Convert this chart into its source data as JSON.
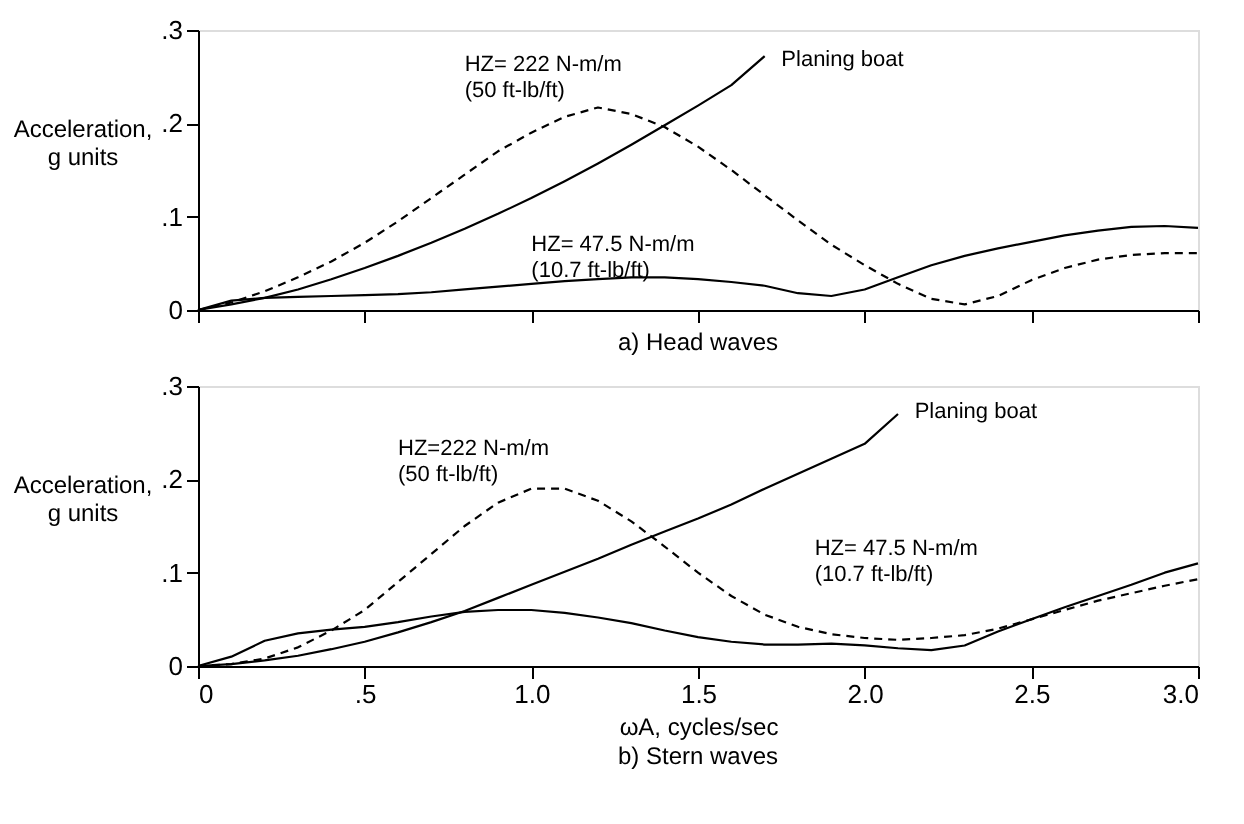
{
  "chart_data": [
    {
      "type": "line",
      "title": "a) Head waves",
      "ylabel": "Acceleration,\ng units",
      "tick_labels": "y",
      "legend": false,
      "grid": false,
      "line_style": "solid",
      "marker": "none",
      "xlim": [
        0,
        3
      ],
      "xticks": [
        0,
        0.5,
        1,
        1.5,
        2,
        2.5,
        3
      ],
      "ylim": [
        0,
        0.3
      ],
      "yticks": [
        {
          "value": 0,
          "label": "0"
        },
        {
          "value": 0.1,
          "label": ".1"
        },
        {
          "value": 0.2,
          "label": ".2"
        },
        {
          "value": 0.3,
          "label": ".3"
        }
      ],
      "series": [
        {
          "name": "Planing boat",
          "color": "#000000",
          "x": [
            0,
            0.1,
            0.2,
            0.3,
            0.4,
            0.5,
            0.6,
            0.7,
            0.8,
            0.9,
            1.0,
            1.1,
            1.2,
            1.3,
            1.4,
            1.5,
            1.6,
            1.7
          ],
          "values": [
            0,
            0.006,
            0.013,
            0.022,
            0.033,
            0.045,
            0.058,
            0.072,
            0.087,
            0.103,
            0.12,
            0.138,
            0.157,
            0.177,
            0.198,
            0.219,
            0.241,
            0.272
          ]
        },
        {
          "name": "HZ= 222 N-m/m\n(50 ft-lb/ft)",
          "color": "#000000",
          "line_style": "dashed",
          "x": [
            0,
            0.1,
            0.2,
            0.3,
            0.4,
            0.5,
            0.6,
            0.7,
            0.8,
            0.9,
            1.0,
            1.1,
            1.2,
            1.3,
            1.4,
            1.5,
            1.6,
            1.7,
            1.8,
            1.9,
            2.0,
            2.1,
            2.2,
            2.3,
            2.4,
            2.5,
            2.6,
            2.7,
            2.8,
            2.9,
            3.0
          ],
          "values": [
            0,
            0.008,
            0.02,
            0.035,
            0.052,
            0.072,
            0.095,
            0.12,
            0.145,
            0.17,
            0.19,
            0.207,
            0.217,
            0.21,
            0.196,
            0.175,
            0.15,
            0.123,
            0.096,
            0.07,
            0.048,
            0.028,
            0.012,
            0.006,
            0.015,
            0.032,
            0.045,
            0.054,
            0.059,
            0.061,
            0.061
          ]
        },
        {
          "name": "HZ= 47.5 N-m/m\n(10.7 ft-lb/ft)",
          "color": "#000000",
          "x": [
            0,
            0.1,
            0.2,
            0.3,
            0.4,
            0.5,
            0.6,
            0.7,
            0.8,
            0.9,
            1.0,
            1.1,
            1.2,
            1.3,
            1.4,
            1.5,
            1.6,
            1.7,
            1.8,
            1.9,
            2.0,
            2.1,
            2.2,
            2.3,
            2.4,
            2.5,
            2.6,
            2.7,
            2.8,
            2.9,
            3.0
          ],
          "values": [
            0,
            0.01,
            0.013,
            0.014,
            0.015,
            0.016,
            0.017,
            0.019,
            0.022,
            0.025,
            0.028,
            0.031,
            0.033,
            0.035,
            0.035,
            0.033,
            0.03,
            0.026,
            0.018,
            0.015,
            0.022,
            0.035,
            0.048,
            0.058,
            0.066,
            0.073,
            0.08,
            0.085,
            0.089,
            0.09,
            0.088
          ]
        }
      ]
    },
    {
      "type": "line",
      "title": "b) Stern waves",
      "xlabel": "ωA, cycles/sec",
      "ylabel": "Acceleration,\ng units",
      "legend": false,
      "grid": false,
      "line_style": "solid",
      "marker": "none",
      "xlim": [
        0,
        3
      ],
      "xticks": [
        {
          "value": 0,
          "label": "0"
        },
        {
          "value": 0.5,
          "label": ".5"
        },
        {
          "value": 1,
          "label": "1.0"
        },
        {
          "value": 1.5,
          "label": "1.5"
        },
        {
          "value": 2,
          "label": "2.0"
        },
        {
          "value": 2.5,
          "label": "2.5"
        },
        {
          "value": 3,
          "label": "3.0"
        }
      ],
      "ylim": [
        0,
        0.3
      ],
      "yticks": [
        {
          "value": 0,
          "label": "0"
        },
        {
          "value": 0.1,
          "label": ".1"
        },
        {
          "value": 0.2,
          "label": ".2"
        },
        {
          "value": 0.3,
          "label": ".3"
        }
      ],
      "series": [
        {
          "name": "Planing boat",
          "color": "#000000",
          "x": [
            0,
            0.1,
            0.2,
            0.3,
            0.4,
            0.5,
            0.6,
            0.7,
            0.8,
            0.9,
            1.0,
            1.1,
            1.2,
            1.3,
            1.4,
            1.5,
            1.6,
            1.7,
            1.8,
            1.9,
            2.0,
            2.1
          ],
          "values": [
            0,
            0.002,
            0.006,
            0.011,
            0.018,
            0.026,
            0.036,
            0.047,
            0.059,
            0.073,
            0.087,
            0.101,
            0.115,
            0.13,
            0.144,
            0.158,
            0.173,
            0.19,
            0.206,
            0.222,
            0.238,
            0.27
          ]
        },
        {
          "name": "HZ=222 N-m/m\n(50 ft-lb/ft)",
          "color": "#000000",
          "line_style": "dashed",
          "x": [
            0,
            0.1,
            0.2,
            0.3,
            0.4,
            0.5,
            0.6,
            0.7,
            0.8,
            0.9,
            1.0,
            1.1,
            1.2,
            1.3,
            1.4,
            1.5,
            1.6,
            1.7,
            1.8,
            1.9,
            2.0,
            2.1,
            2.2,
            2.3,
            2.4,
            2.5,
            2.6,
            2.7,
            2.8,
            2.9,
            3.0
          ],
          "values": [
            0,
            0.002,
            0.008,
            0.02,
            0.038,
            0.06,
            0.09,
            0.12,
            0.15,
            0.175,
            0.19,
            0.19,
            0.177,
            0.155,
            0.128,
            0.1,
            0.075,
            0.055,
            0.042,
            0.034,
            0.03,
            0.028,
            0.03,
            0.033,
            0.04,
            0.05,
            0.06,
            0.07,
            0.078,
            0.086,
            0.093
          ]
        },
        {
          "name": "HZ= 47.5 N-m/m\n(10.7 ft-lb/ft)",
          "color": "#000000",
          "x": [
            0,
            0.1,
            0.2,
            0.3,
            0.4,
            0.5,
            0.6,
            0.7,
            0.8,
            0.9,
            1.0,
            1.1,
            1.2,
            1.3,
            1.4,
            1.5,
            1.6,
            1.7,
            1.8,
            1.9,
            2.0,
            2.1,
            2.2,
            2.3,
            2.4,
            2.5,
            2.6,
            2.7,
            2.8,
            2.9,
            3.0
          ],
          "values": [
            0,
            0.01,
            0.027,
            0.035,
            0.039,
            0.042,
            0.047,
            0.053,
            0.058,
            0.06,
            0.06,
            0.057,
            0.052,
            0.046,
            0.038,
            0.031,
            0.026,
            0.023,
            0.023,
            0.024,
            0.022,
            0.019,
            0.017,
            0.022,
            0.037,
            0.05,
            0.063,
            0.075,
            0.087,
            0.1,
            0.11
          ]
        }
      ]
    }
  ]
}
